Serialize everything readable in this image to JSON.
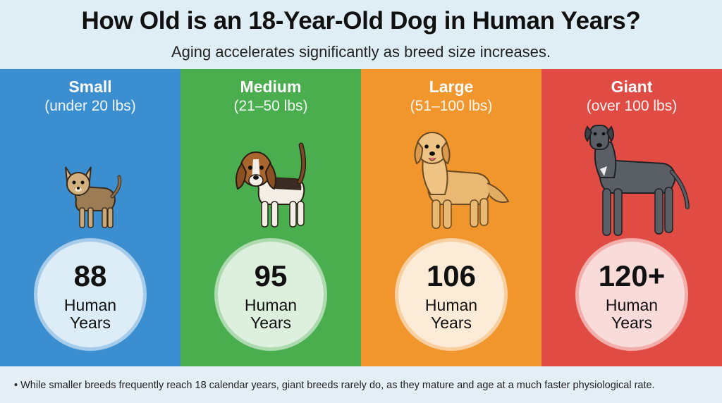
{
  "header": {
    "title": "How Old is an 18-Year-Old Dog in Human Years?",
    "subtitle": "Aging accelerates significantly as breed size increases."
  },
  "panels": [
    {
      "name": "Small",
      "range": "(under 20 lbs)",
      "value": "88",
      "unit_line1": "Human",
      "unit_line2": "Years",
      "color": "#3b8fd0",
      "badge_bg": "#dcedf8",
      "dog_icon": "chihuahua-icon"
    },
    {
      "name": "Medium",
      "range": "(21–50 lbs)",
      "value": "95",
      "unit_line1": "Human",
      "unit_line2": "Years",
      "color": "#4aae4f",
      "badge_bg": "#ddf0dd",
      "dog_icon": "beagle-icon"
    },
    {
      "name": "Large",
      "range": "(51–100 lbs)",
      "value": "106",
      "unit_line1": "Human",
      "unit_line2": "Years",
      "color": "#f0962d",
      "badge_bg": "#fcebd6",
      "dog_icon": "golden-retriever-icon"
    },
    {
      "name": "Giant",
      "range": "(over 100 lbs)",
      "value": "120+",
      "unit_line1": "Human",
      "unit_line2": "Years",
      "color": "#e04c44",
      "badge_bg": "#f9dcda",
      "dog_icon": "great-dane-icon"
    }
  ],
  "footer": {
    "note": "• While smaller breeds frequently reach 18 calendar years, giant breeds rarely do, as they mature and age at a much faster physiological rate."
  }
}
